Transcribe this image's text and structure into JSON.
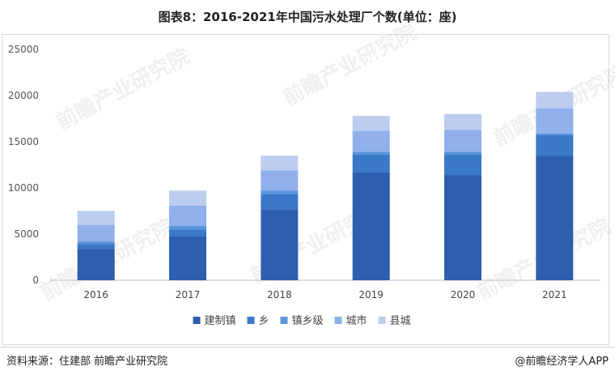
{
  "title": "图表8：2016-2021年中国污水处理厂个数(单位：座)",
  "source": "资料来源：住建部 前瞻产业研究院",
  "brand": "@前瞻经济学人APP",
  "watermark": "前瞻产业研究院",
  "chart_data": {
    "type": "bar",
    "stacked": true,
    "title": "图表8：2016-2021年中国污水处理厂个数(单位：座)",
    "categories": [
      "2016",
      "2017",
      "2018",
      "2019",
      "2020",
      "2021"
    ],
    "series": [
      {
        "name": "建制镇",
        "color": "#2e5fae",
        "values": [
          3400,
          4800,
          7700,
          11700,
          11400,
          13500
        ]
      },
      {
        "name": "乡",
        "color": "#3a78c8",
        "values": [
          500,
          700,
          1600,
          1900,
          2200,
          2200
        ]
      },
      {
        "name": "镇乡级",
        "color": "#5a94dd",
        "values": [
          300,
          400,
          400,
          300,
          300,
          200
        ]
      },
      {
        "name": "城市",
        "color": "#8fb0ea",
        "values": [
          1800,
          2200,
          2200,
          2300,
          2400,
          2700
        ]
      },
      {
        "name": "县城",
        "color": "#bccdf0",
        "values": [
          1500,
          1600,
          1600,
          1600,
          1700,
          1800
        ]
      }
    ],
    "ylim": [
      0,
      25000
    ],
    "yticks": [
      0,
      5000,
      10000,
      15000,
      20000,
      25000
    ],
    "grid": false,
    "legend": "bottom"
  }
}
